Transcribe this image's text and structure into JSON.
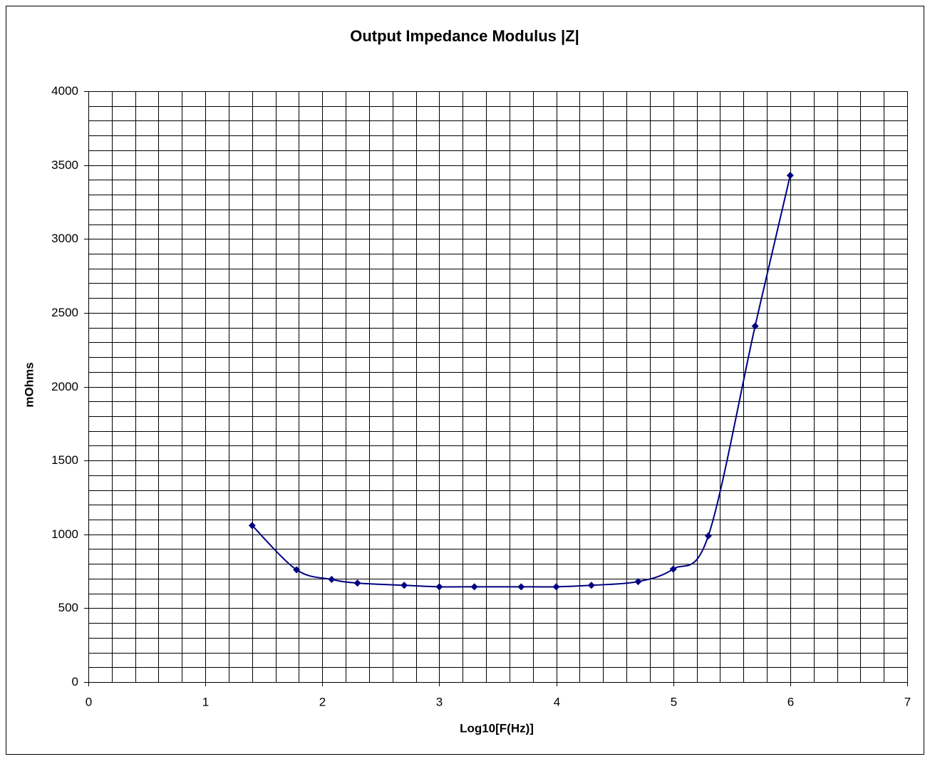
{
  "chart_data": {
    "type": "scatter-smooth",
    "title": "Output Impedance Modulus |Z|",
    "x_label": "Log10[F(Hz)]",
    "y_label": "mOhms",
    "series": [
      {
        "color": "#000080",
        "x": [
          1.4,
          1.78,
          2.08,
          2.3,
          2.7,
          3,
          3.3,
          3.7,
          4,
          4.3,
          4.7,
          5,
          5.3,
          5.7,
          6
        ],
        "values": [
          1060,
          760,
          695,
          670,
          655,
          645,
          645,
          645,
          645,
          655,
          680,
          765,
          990,
          2410,
          3430
        ]
      }
    ],
    "xlim": [
      0,
      7
    ],
    "xticks": [
      0,
      1,
      2,
      3,
      4,
      5,
      6,
      7
    ],
    "ylim": [
      0,
      4000
    ],
    "yticks": [
      0,
      500,
      1000,
      1500,
      2000,
      2500,
      3000,
      3500,
      4000
    ],
    "grid": {
      "x_step": 0.2,
      "y_step": 100
    }
  }
}
